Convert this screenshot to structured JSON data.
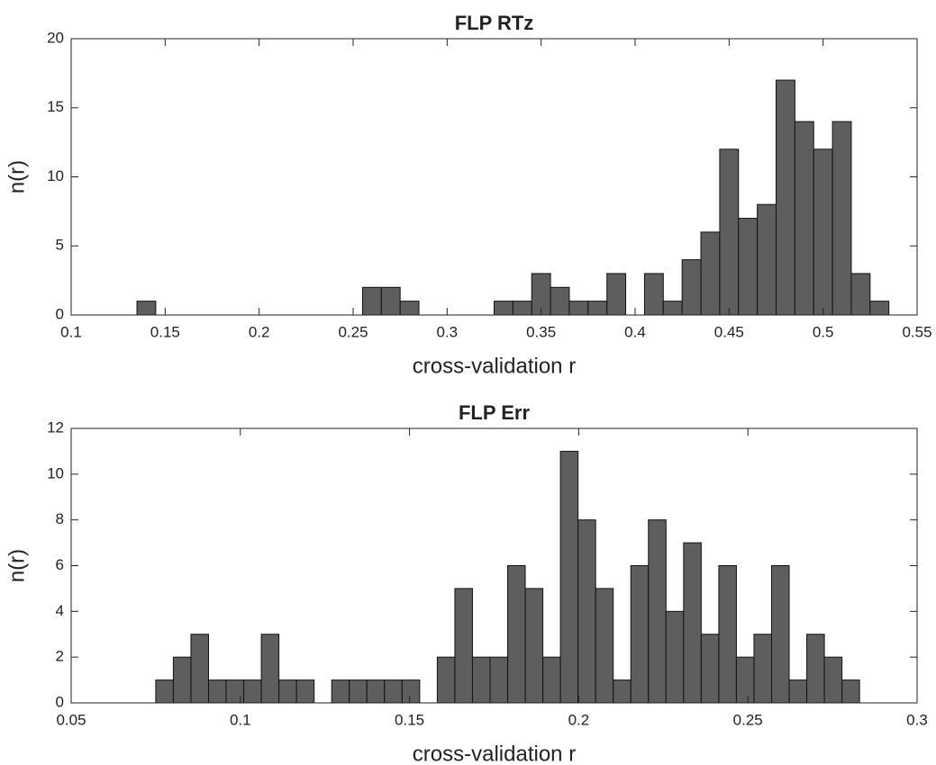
{
  "chart_data": [
    {
      "type": "histogram",
      "title": "FLP RTz",
      "xlabel": "cross-validation r",
      "ylabel": "n(r)",
      "color": "#5e5e5e",
      "bins": [
        0.135,
        0.145,
        0.155,
        0.165,
        0.175,
        0.185,
        0.195,
        0.205,
        0.215,
        0.225,
        0.235,
        0.245,
        0.255,
        0.265,
        0.275,
        0.285,
        0.295,
        0.305,
        0.315,
        0.325,
        0.335,
        0.345,
        0.355,
        0.365,
        0.375,
        0.385,
        0.395,
        0.405,
        0.415,
        0.425,
        0.435,
        0.445,
        0.455,
        0.465,
        0.475,
        0.485,
        0.495,
        0.505,
        0.515,
        0.525,
        0.535
      ],
      "values": [
        1,
        0,
        0,
        0,
        0,
        0,
        0,
        0,
        0,
        0,
        0,
        0,
        2,
        2,
        1,
        0,
        0,
        0,
        0,
        1,
        1,
        3,
        2,
        1,
        1,
        3,
        0,
        3,
        1,
        4,
        6,
        12,
        7,
        8,
        17,
        14,
        12,
        14,
        3,
        1
      ],
      "xlim": [
        0.1,
        0.55
      ],
      "xticks": [
        0.1,
        0.15,
        0.2,
        0.25,
        0.3,
        0.35,
        0.4,
        0.45,
        0.5,
        0.55
      ],
      "ylim": [
        0,
        20
      ],
      "yticks": [
        0,
        5,
        10,
        15,
        20
      ]
    },
    {
      "type": "histogram",
      "title": "FLP Err",
      "xlabel": "cross-validation r",
      "ylabel": "n(r)",
      "color": "#5e5e5e",
      "bins": [
        0.075,
        0.0802,
        0.0854,
        0.0906,
        0.0958,
        0.101,
        0.1062,
        0.1114,
        0.1166,
        0.1218,
        0.127,
        0.1322,
        0.1374,
        0.1426,
        0.1478,
        0.153,
        0.1582,
        0.1634,
        0.1686,
        0.1738,
        0.179,
        0.1842,
        0.1894,
        0.1946,
        0.1998,
        0.205,
        0.2102,
        0.2154,
        0.2206,
        0.2258,
        0.231,
        0.2362,
        0.2414,
        0.2466,
        0.2518,
        0.257,
        0.2622,
        0.2674,
        0.2726,
        0.2778,
        0.283
      ],
      "values": [
        1,
        2,
        3,
        1,
        1,
        1,
        3,
        1,
        1,
        0,
        1,
        1,
        1,
        1,
        1,
        0,
        2,
        5,
        2,
        2,
        6,
        5,
        2,
        11,
        8,
        5,
        1,
        6,
        8,
        4,
        7,
        3,
        6,
        2,
        3,
        6,
        1,
        3,
        2,
        1
      ],
      "xlim": [
        0.05,
        0.3
      ],
      "xticks": [
        0.05,
        0.1,
        0.15,
        0.2,
        0.25,
        0.3
      ],
      "ylim": [
        0,
        12
      ],
      "yticks": [
        0,
        2,
        4,
        6,
        8,
        10,
        12
      ]
    }
  ]
}
